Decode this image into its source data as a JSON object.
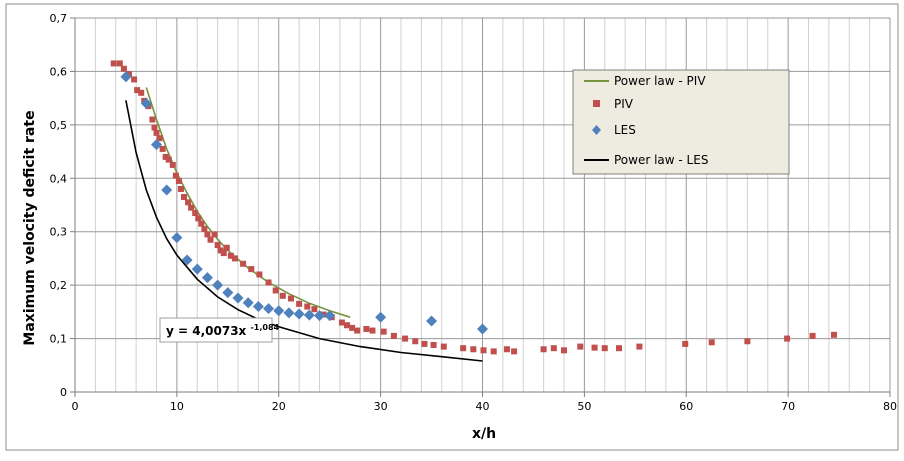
{
  "chart_data": {
    "type": "scatter",
    "xlabel": "x/h",
    "ylabel": "Maximum velocity deficit rate",
    "xlim": [
      0,
      80
    ],
    "ylim": [
      0,
      0.7
    ],
    "x_ticks": [
      0,
      10,
      20,
      30,
      40,
      50,
      60,
      70,
      80
    ],
    "y_ticks": [
      0,
      0.1,
      0.2,
      0.3,
      0.4,
      0.5,
      0.6,
      0.7
    ],
    "x_tick_labels": [
      "0",
      "10",
      "20",
      "30",
      "40",
      "50",
      "60",
      "70",
      "80"
    ],
    "y_tick_labels": [
      "0",
      "0,1",
      "0,2",
      "0,3",
      "0,4",
      "0,5",
      "0,6",
      "0,7"
    ],
    "grid": true,
    "legend_position": "top-right",
    "legend": [
      {
        "label": "Power law - PIV",
        "kind": "line",
        "color": "#77933c"
      },
      {
        "label": "PIV",
        "kind": "square",
        "color": "#c0504d"
      },
      {
        "label": "LES",
        "kind": "diamond",
        "color": "#4f81bd"
      },
      {
        "label": "Power law - LES",
        "kind": "line",
        "color": "#000000"
      }
    ],
    "annotation": {
      "prefix": "y = 4,0073x",
      "exponent": "-1,084"
    },
    "series": [
      {
        "name": "PIV",
        "marker": "square",
        "color": "#c0504d",
        "points": [
          [
            3.8,
            0.615
          ],
          [
            4.4,
            0.615
          ],
          [
            4.8,
            0.605
          ],
          [
            5.3,
            0.595
          ],
          [
            5.8,
            0.585
          ],
          [
            6.1,
            0.565
          ],
          [
            6.5,
            0.56
          ],
          [
            6.8,
            0.545
          ],
          [
            7.2,
            0.535
          ],
          [
            7.6,
            0.51
          ],
          [
            7.8,
            0.495
          ],
          [
            8.0,
            0.485
          ],
          [
            8.3,
            0.475
          ],
          [
            8.6,
            0.455
          ],
          [
            8.9,
            0.44
          ],
          [
            9.2,
            0.435
          ],
          [
            9.6,
            0.425
          ],
          [
            9.9,
            0.405
          ],
          [
            10.2,
            0.395
          ],
          [
            10.4,
            0.38
          ],
          [
            10.7,
            0.365
          ],
          [
            11.1,
            0.355
          ],
          [
            11.4,
            0.345
          ],
          [
            11.8,
            0.335
          ],
          [
            12.1,
            0.325
          ],
          [
            12.4,
            0.315
          ],
          [
            12.7,
            0.305
          ],
          [
            13.0,
            0.295
          ],
          [
            13.3,
            0.285
          ],
          [
            13.7,
            0.295
          ],
          [
            14.0,
            0.275
          ],
          [
            14.3,
            0.265
          ],
          [
            14.6,
            0.26
          ],
          [
            14.9,
            0.27
          ],
          [
            15.3,
            0.255
          ],
          [
            15.7,
            0.25
          ],
          [
            16.5,
            0.24
          ],
          [
            17.3,
            0.23
          ],
          [
            18.1,
            0.22
          ],
          [
            19.0,
            0.205
          ],
          [
            19.7,
            0.19
          ],
          [
            20.4,
            0.18
          ],
          [
            21.2,
            0.175
          ],
          [
            22.0,
            0.165
          ],
          [
            22.8,
            0.16
          ],
          [
            23.5,
            0.155
          ],
          [
            24.4,
            0.145
          ],
          [
            25.2,
            0.14
          ],
          [
            26.2,
            0.13
          ],
          [
            26.7,
            0.125
          ],
          [
            27.2,
            0.12
          ],
          [
            27.7,
            0.115
          ],
          [
            28.6,
            0.118
          ],
          [
            29.2,
            0.115
          ],
          [
            30.3,
            0.113
          ],
          [
            31.3,
            0.105
          ],
          [
            32.4,
            0.1
          ],
          [
            33.4,
            0.095
          ],
          [
            34.3,
            0.09
          ],
          [
            35.2,
            0.088
          ],
          [
            36.2,
            0.085
          ],
          [
            38.1,
            0.082
          ],
          [
            39.1,
            0.08
          ],
          [
            40.1,
            0.078
          ],
          [
            41.1,
            0.076
          ],
          [
            42.4,
            0.08
          ],
          [
            43.1,
            0.076
          ],
          [
            46.0,
            0.08
          ],
          [
            47.0,
            0.082
          ],
          [
            48.0,
            0.078
          ],
          [
            49.6,
            0.085
          ],
          [
            51.0,
            0.083
          ],
          [
            52.0,
            0.082
          ],
          [
            53.4,
            0.082
          ],
          [
            55.4,
            0.085
          ],
          [
            59.9,
            0.09
          ],
          [
            62.5,
            0.093
          ],
          [
            66.0,
            0.095
          ],
          [
            69.9,
            0.1
          ],
          [
            72.4,
            0.105
          ],
          [
            74.5,
            0.107
          ]
        ]
      },
      {
        "name": "LES",
        "marker": "diamond",
        "color": "#4f81bd",
        "points": [
          [
            5,
            0.59
          ],
          [
            7,
            0.54
          ],
          [
            8,
            0.463
          ],
          [
            9,
            0.378
          ],
          [
            10,
            0.289
          ],
          [
            11,
            0.247
          ],
          [
            12,
            0.23
          ],
          [
            13,
            0.214
          ],
          [
            14,
            0.2
          ],
          [
            15,
            0.186
          ],
          [
            16,
            0.176
          ],
          [
            17,
            0.167
          ],
          [
            18,
            0.16
          ],
          [
            19,
            0.156
          ],
          [
            20,
            0.152
          ],
          [
            21,
            0.148
          ],
          [
            22,
            0.146
          ],
          [
            23,
            0.144
          ],
          [
            24,
            0.143
          ],
          [
            25,
            0.143
          ],
          [
            30,
            0.14
          ],
          [
            35,
            0.133
          ],
          [
            40,
            0.118
          ]
        ]
      },
      {
        "name": "Power law - PIV",
        "type": "line",
        "color": "#77933c",
        "points": [
          [
            7,
            0.57
          ],
          [
            8,
            0.51
          ],
          [
            9,
            0.455
          ],
          [
            10,
            0.41
          ],
          [
            11,
            0.372
          ],
          [
            12,
            0.338
          ],
          [
            13,
            0.31
          ],
          [
            14,
            0.286
          ],
          [
            15,
            0.265
          ],
          [
            17,
            0.232
          ],
          [
            19,
            0.205
          ],
          [
            21,
            0.184
          ],
          [
            23,
            0.166
          ],
          [
            25,
            0.152
          ],
          [
            27,
            0.14
          ]
        ]
      },
      {
        "name": "Power law - LES",
        "type": "line",
        "color": "#000000",
        "points": [
          [
            5,
            0.546
          ],
          [
            6,
            0.448
          ],
          [
            7,
            0.378
          ],
          [
            8,
            0.327
          ],
          [
            9,
            0.287
          ],
          [
            10,
            0.256
          ],
          [
            12,
            0.211
          ],
          [
            14,
            0.178
          ],
          [
            16,
            0.154
          ],
          [
            18,
            0.136
          ],
          [
            20,
            0.122
          ],
          [
            24,
            0.1
          ],
          [
            28,
            0.085
          ],
          [
            32,
            0.074
          ],
          [
            36,
            0.066
          ],
          [
            40,
            0.058
          ]
        ]
      }
    ]
  }
}
